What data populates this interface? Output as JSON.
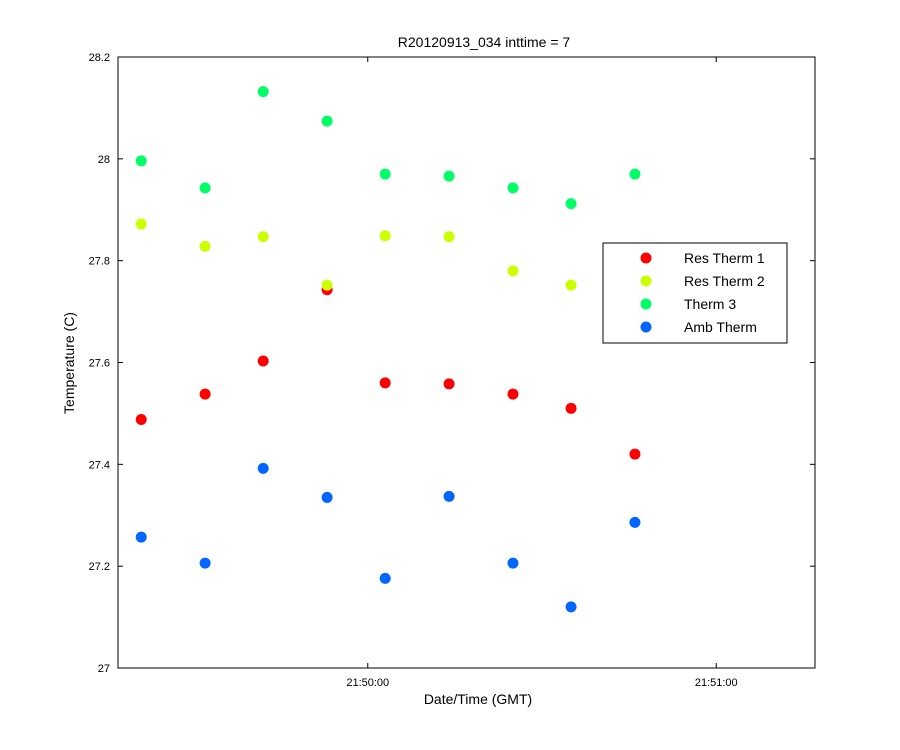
{
  "chart_data": {
    "type": "scatter",
    "title": "R20120913_034 inttime = 7",
    "xlabel": "Date/Time (GMT)",
    "ylabel": "Temperature (C)",
    "xlim": [
      "21:49:17",
      "21:51:17"
    ],
    "ylim": [
      27,
      28.2
    ],
    "xticks": [
      "21:50:00",
      "21:51:00"
    ],
    "yticks": [
      "27",
      "27.2",
      "27.4",
      "27.6",
      "27.8",
      "28",
      "28.2"
    ],
    "grid": false,
    "legend_position": "right",
    "x": [
      "21:49:21",
      "21:49:32",
      "21:49:42",
      "21:49:53",
      "21:50:03",
      "21:50:14",
      "21:50:25",
      "21:50:35",
      "21:50:46"
    ],
    "series": [
      {
        "name": "Res Therm 1",
        "color": "#ff0000",
        "values": [
          27.488,
          27.538,
          27.603,
          27.743,
          27.56,
          27.558,
          27.538,
          27.51,
          27.42
        ]
      },
      {
        "name": "Res Therm 2",
        "color": "#ccff00",
        "values": [
          27.872,
          27.828,
          27.847,
          27.752,
          27.849,
          27.847,
          27.78,
          27.752,
          null
        ]
      },
      {
        "name": "Therm 3",
        "color": "#00ff66",
        "values": [
          27.996,
          27.943,
          28.132,
          28.074,
          27.97,
          27.966,
          27.943,
          27.912,
          27.97
        ]
      },
      {
        "name": "Amb Therm",
        "color": "#0066ff",
        "values": [
          27.257,
          27.206,
          27.392,
          27.335,
          27.176,
          27.337,
          27.206,
          27.12,
          27.286
        ]
      }
    ]
  }
}
